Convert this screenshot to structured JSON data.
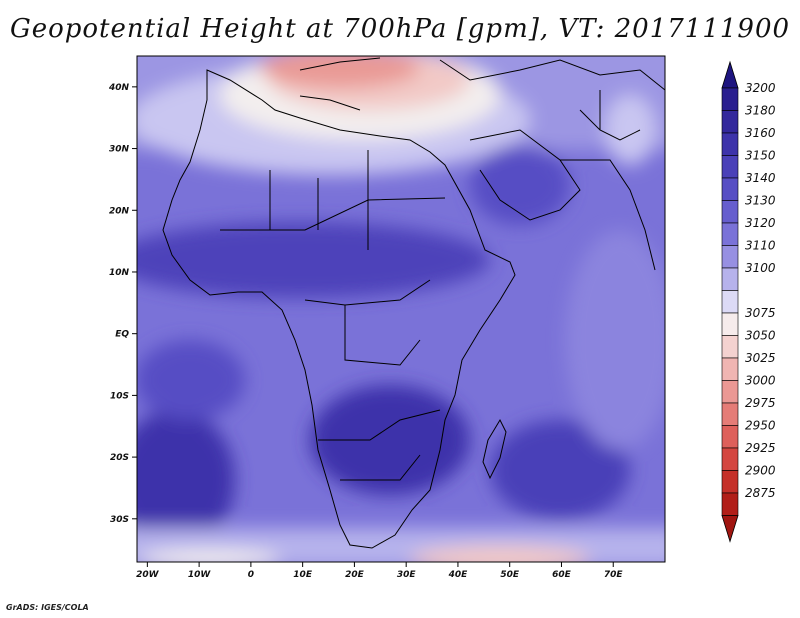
{
  "title": "Geopotential Height at 700hPa [gpm], VT: 2017111900",
  "footer": "GrADS: IGES/COLA",
  "map": {
    "lon_range": [
      -22,
      80
    ],
    "lat_range": [
      -37,
      45
    ],
    "lat_ticks": [
      {
        "value": 40,
        "label": "40N"
      },
      {
        "value": 30,
        "label": "30N"
      },
      {
        "value": 20,
        "label": "20N"
      },
      {
        "value": 10,
        "label": "10N"
      },
      {
        "value": 0,
        "label": "EQ"
      },
      {
        "value": -10,
        "label": "10S"
      },
      {
        "value": -20,
        "label": "20S"
      },
      {
        "value": -30,
        "label": "30S"
      }
    ],
    "lon_ticks": [
      {
        "value": -20,
        "label": "20W"
      },
      {
        "value": -10,
        "label": "10W"
      },
      {
        "value": 0,
        "label": "0"
      },
      {
        "value": 10,
        "label": "10E"
      },
      {
        "value": 20,
        "label": "20E"
      },
      {
        "value": 30,
        "label": "30E"
      },
      {
        "value": 40,
        "label": "40E"
      },
      {
        "value": 50,
        "label": "50E"
      },
      {
        "value": 60,
        "label": "60E"
      },
      {
        "value": 70,
        "label": "70E"
      }
    ]
  },
  "colorbar": {
    "levels": [
      {
        "label": "3200",
        "color": "#2a1f8f"
      },
      {
        "label": "3180",
        "color": "#33289c"
      },
      {
        "label": "3160",
        "color": "#3d33aa"
      },
      {
        "label": "3150",
        "color": "#4a40b8"
      },
      {
        "label": "3140",
        "color": "#574ec4"
      },
      {
        "label": "3130",
        "color": "#665ece"
      },
      {
        "label": "3120",
        "color": "#7a72d8"
      },
      {
        "label": "3110",
        "color": "#9790e2"
      },
      {
        "label": "3100",
        "color": "#b6b2ec"
      },
      {
        "label": "",
        "color": "#dcdaf6"
      },
      {
        "label": "3075",
        "color": "#f6ecec"
      },
      {
        "label": "3050",
        "color": "#f4d2d0"
      },
      {
        "label": "3025",
        "color": "#f0b5b2"
      },
      {
        "label": "3000",
        "color": "#eb9894"
      },
      {
        "label": "2975",
        "color": "#e57c77"
      },
      {
        "label": "2950",
        "color": "#de605b"
      },
      {
        "label": "2925",
        "color": "#d44640"
      },
      {
        "label": "2900",
        "color": "#c53029"
      },
      {
        "label": "2875",
        "color": "#b11e18"
      }
    ],
    "top_arrow_color": "#1e1580",
    "bottom_arrow_color": "#a01510"
  }
}
